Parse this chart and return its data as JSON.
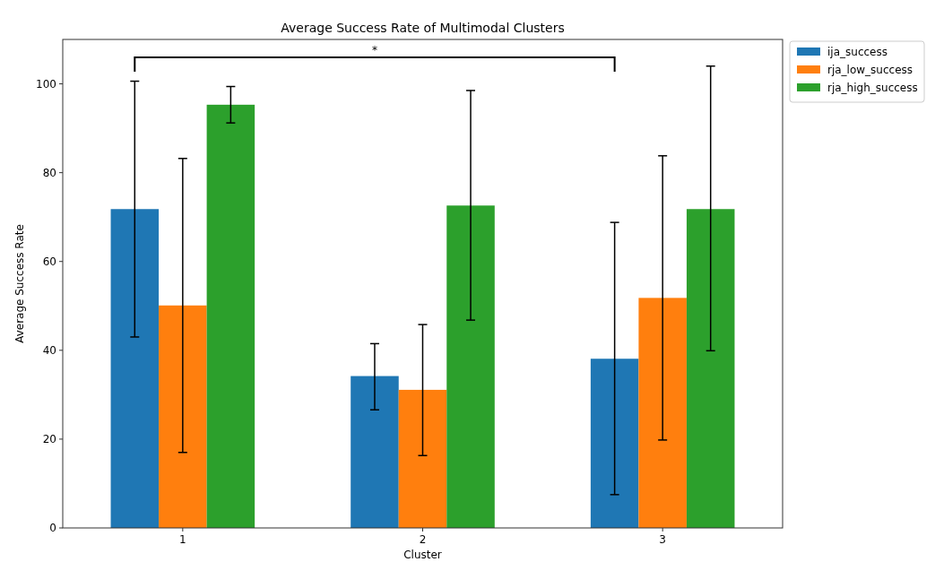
{
  "chart_data": {
    "type": "bar",
    "title": "Average Success Rate of Multimodal Clusters",
    "xlabel": "Cluster",
    "ylabel": "Average Success Rate",
    "categories": [
      "1",
      "2",
      "3"
    ],
    "series": [
      {
        "name": "ija_success",
        "color": "#1f77b4",
        "values": [
          71.8,
          34.2,
          38.1
        ],
        "errors": [
          [
            43.0,
            100.6
          ],
          [
            26.6,
            41.5
          ],
          [
            7.5,
            68.8
          ]
        ]
      },
      {
        "name": "rja_low_success",
        "color": "#ff7f0e",
        "values": [
          50.1,
          31.1,
          51.8
        ],
        "errors": [
          [
            17.0,
            83.2
          ],
          [
            16.3,
            45.8
          ],
          [
            19.8,
            83.8
          ]
        ]
      },
      {
        "name": "rja_high_success",
        "color": "#2ca02c",
        "values": [
          95.3,
          72.6,
          71.8
        ],
        "errors": [
          [
            91.2,
            99.4
          ],
          [
            46.8,
            98.5
          ],
          [
            39.9,
            104.0
          ]
        ]
      }
    ],
    "ylim": [
      0,
      110
    ],
    "yticks": [
      0,
      20,
      40,
      60,
      80,
      100
    ],
    "grid": false,
    "legend": "right",
    "annotations": [
      "*"
    ]
  }
}
